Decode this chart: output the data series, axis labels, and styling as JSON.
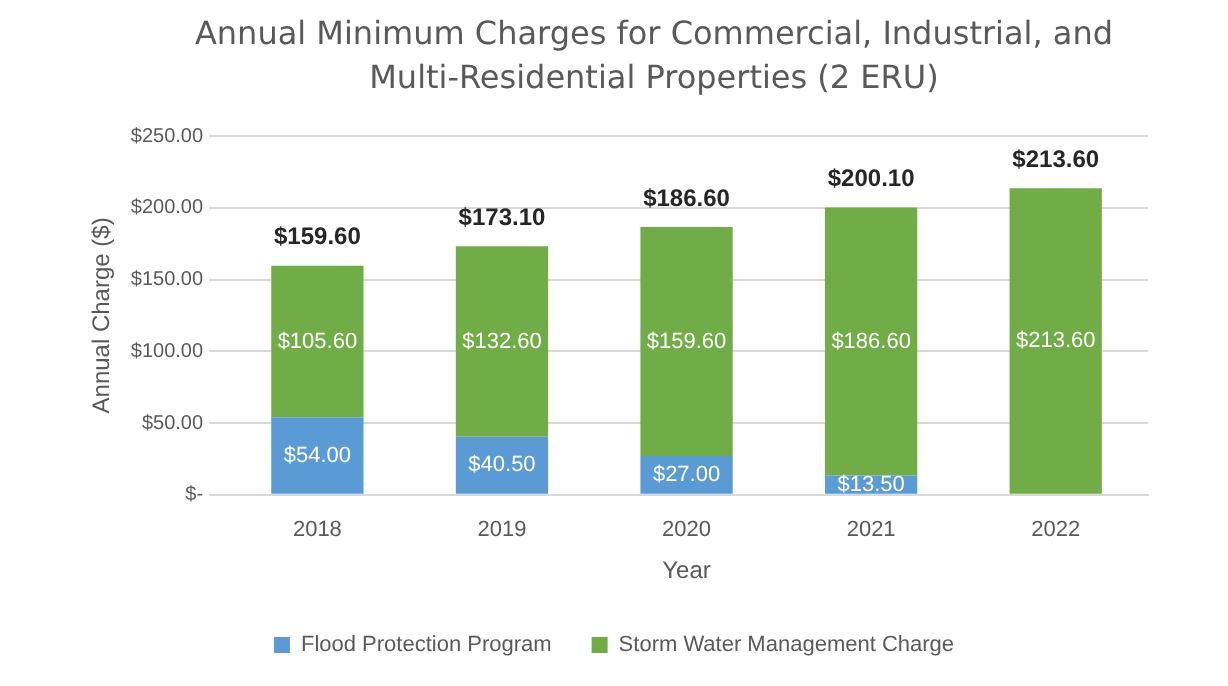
{
  "chart_data": {
    "type": "bar",
    "title": "Annual Minimum Charges for Commercial, Industrial, and Multi-Residential Properties (2 ERU)",
    "xlabel": "Year",
    "ylabel": "Annual Charge ($)",
    "categories": [
      "2018",
      "2019",
      "2020",
      "2021",
      "2022"
    ],
    "stacked": true,
    "series": [
      {
        "name": "Flood Protection Program",
        "color": "#5b9bd5",
        "values": [
          54,
          40.5,
          27,
          13.5,
          null
        ],
        "value_labels": [
          "$54.00",
          "$40.50",
          "$27.00",
          "$13.50",
          null
        ]
      },
      {
        "name": "Storm Water Management Charge",
        "color": "#70ad47",
        "values": [
          105.6,
          132.6,
          159.6,
          186.6,
          213.6
        ],
        "value_labels": [
          "$105.60",
          "$132.60",
          "$159.60",
          "$186.60",
          "$213.60"
        ]
      }
    ],
    "totals": [
      "$159.60",
      "$173.10",
      "$186.60",
      "$200.10",
      "$213.60"
    ],
    "ylim": [
      0,
      250
    ],
    "yticks": [
      {
        "value": 0,
        "label": "$-"
      },
      {
        "value": 50,
        "label": "$50.00"
      },
      {
        "value": 100,
        "label": "$100.00"
      },
      {
        "value": 150,
        "label": "$150.00"
      },
      {
        "value": 200,
        "label": "$200.00"
      },
      {
        "value": 250,
        "label": "$250.00"
      }
    ],
    "grid": "y",
    "legend": "bottom"
  }
}
